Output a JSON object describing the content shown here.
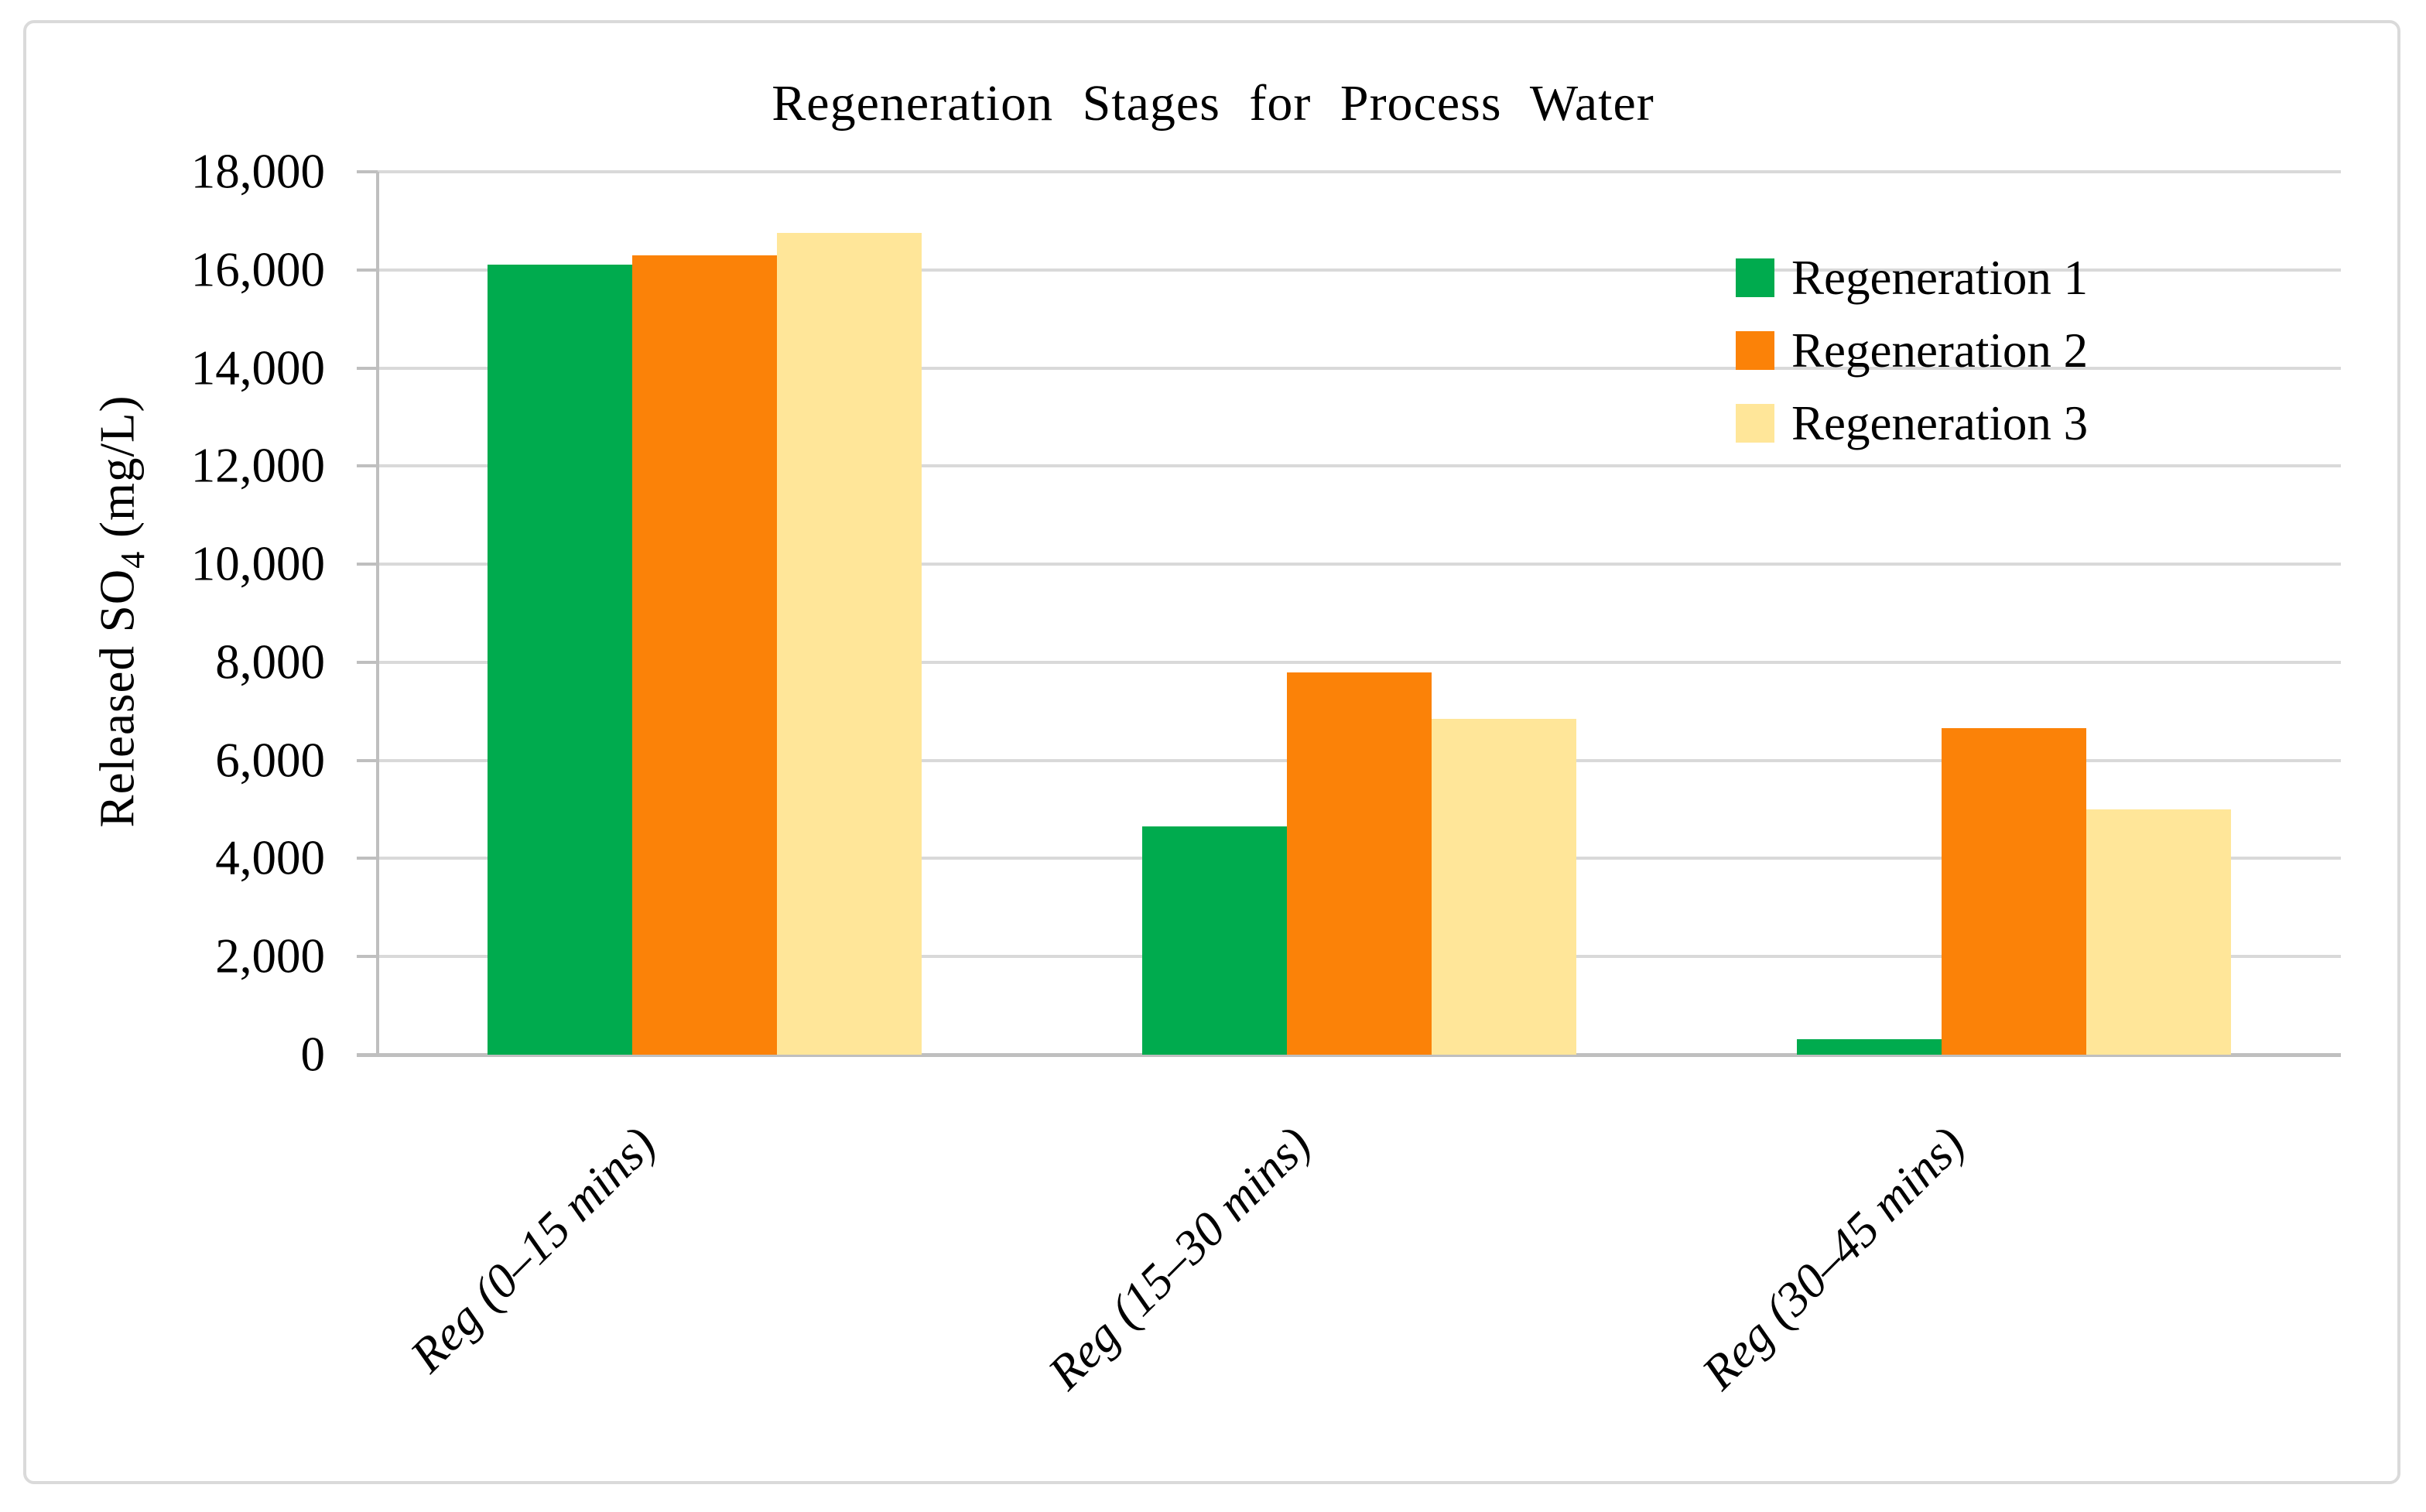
{
  "figure": {
    "background": "#FFFFFF",
    "border_color": "#DADADA",
    "gridline_color": "#D9D9D9",
    "axis_color": "#BFBFBF",
    "text_color": "#000000"
  },
  "chart_data": {
    "type": "bar",
    "title": "Regeneration Stages for Process Water",
    "ylabel": "Released SO4 (mg/L)",
    "ylabel_parts": {
      "pre": "Released SO",
      "sub": "4",
      "post": " (mg/L)"
    },
    "xlabel": "",
    "categories": [
      "Reg (0–15 mins)",
      "Reg (15–30 mins)",
      "Reg (30–45 mins)"
    ],
    "series": [
      {
        "name": "Regeneration 1",
        "color": "#00AB4E",
        "values": [
          16100,
          4650,
          320
        ]
      },
      {
        "name": "Regeneration 2",
        "color": "#FB8208",
        "values": [
          16300,
          7800,
          6650
        ]
      },
      {
        "name": "Regeneration 3",
        "color": "#FFE699",
        "values": [
          16750,
          6850,
          5000
        ]
      }
    ],
    "ylim": [
      0,
      18000
    ],
    "ytick_step": 2000,
    "ytick_labels": [
      "0",
      "2,000",
      "4,000",
      "6,000",
      "8,000",
      "10,000",
      "12,000",
      "14,000",
      "16,000",
      "18,000"
    ],
    "grid": true,
    "legend_position": "inside-top-right"
  }
}
